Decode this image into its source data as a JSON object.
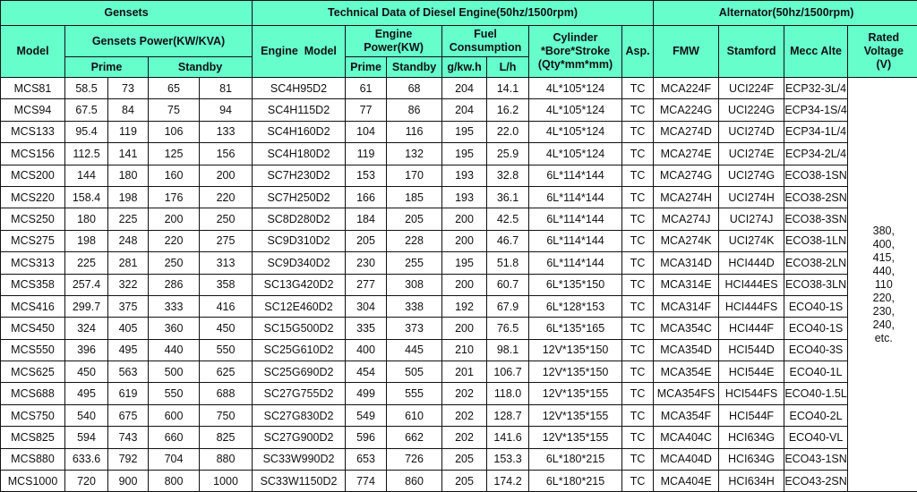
{
  "header": {
    "gensets": "Gensets",
    "engine_group": "Technical Data of Diesel Engine(50hz/1500rpm)",
    "alternator_group": "Alternator(50hz/1500rpm)",
    "model": "Model",
    "gensets_power": "Gensets Power(KW/KVA)",
    "engine_model": "Engine  Model",
    "engine_power": "Engine Power(KW)",
    "fuel_consumption": "Fuel Consumption",
    "cylinder": "Cylinder *Bore*Stroke (Qty*mm*mm)",
    "asp": "Asp.",
    "fmw": "FMW",
    "stamford": "Stamford",
    "mecc_alte": "Mecc Alte",
    "rated_voltage": "Rated Voltage (V)",
    "prime": "Prime",
    "standby": "Standby",
    "engine_prime": "Prime",
    "engine_standby": "Standby",
    "gkwh": "g/kw.h",
    "lh": "L/h"
  },
  "rated_voltage": "380,\n400,\n415,\n440,\n110\n220,\n230,\n240,\netc.",
  "header_color": "#66ffcc",
  "rows": [
    [
      "MCS81",
      "58.5",
      "73",
      "65",
      "81",
      "SC4H95D2",
      "61",
      "68",
      "204",
      "14.1",
      "4L*105*124",
      "TC",
      "MCA224F",
      "UCI224F",
      "ECP32-3L/4"
    ],
    [
      "MCS94",
      "67.5",
      "84",
      "75",
      "94",
      "SC4H115D2",
      "77",
      "86",
      "204",
      "16.2",
      "4L*105*124",
      "TC",
      "MCA224G",
      "UCI224G",
      "ECP34-1S/4"
    ],
    [
      "MCS133",
      "95.4",
      "119",
      "106",
      "133",
      "SC4H160D2",
      "104",
      "116",
      "195",
      "22.0",
      "4L*105*124",
      "TC",
      "MCA274D",
      "UCI274D",
      "ECP34-1L/4"
    ],
    [
      "MCS156",
      "112.5",
      "141",
      "125",
      "156",
      "SC4H180D2",
      "119",
      "132",
      "195",
      "25.9",
      "4L*105*124",
      "TC",
      "MCA274E",
      "UCI274E",
      "ECP34-2L/4"
    ],
    [
      "MCS200",
      "144",
      "180",
      "160",
      "200",
      "SC7H230D2",
      "153",
      "170",
      "193",
      "32.8",
      "6L*114*144",
      "TC",
      "MCA274G",
      "UCI274G",
      "ECO38-1SN"
    ],
    [
      "MCS220",
      "158.4",
      "198",
      "176",
      "220",
      "SC7H250D2",
      "166",
      "185",
      "193",
      "36.1",
      "6L*114*144",
      "TC",
      "MCA274H",
      "UCI274H",
      "ECO38-2SN"
    ],
    [
      "MCS250",
      "180",
      "225",
      "200",
      "250",
      "SC8D280D2",
      "184",
      "205",
      "200",
      "42.5",
      "6L*114*144",
      "TC",
      "MCA274J",
      "UCI274J",
      "ECO38-3SN"
    ],
    [
      "MCS275",
      "198",
      "248",
      "220",
      "275",
      "SC9D310D2",
      "205",
      "228",
      "200",
      "46.7",
      "6L*114*144",
      "TC",
      "MCA274K",
      "UCI274K",
      "ECO38-1LN"
    ],
    [
      "MCS313",
      "225",
      "281",
      "250",
      "313",
      "SC9D340D2",
      "230",
      "255",
      "195",
      "51.8",
      "6L*114*144",
      "TC",
      "MCA314D",
      "HCI444D",
      "ECO38-2LN"
    ],
    [
      "MCS358",
      "257.4",
      "322",
      "286",
      "358",
      "SC13G420D2",
      "277",
      "308",
      "200",
      "60.7",
      "6L*135*150",
      "TC",
      "MCA314E",
      "HCI444ES",
      "ECO38-3LN"
    ],
    [
      "MCS416",
      "299.7",
      "375",
      "333",
      "416",
      "SC12E460D2",
      "304",
      "338",
      "192",
      "67.9",
      "6L*128*153",
      "TC",
      "MCA314F",
      "HCI444FS",
      "ECO40-1S"
    ],
    [
      "MCS450",
      "324",
      "405",
      "360",
      "450",
      "SC15G500D2",
      "335",
      "373",
      "200",
      "76.5",
      "6L*135*165",
      "TC",
      "MCA354C",
      "HCI444F",
      "ECO40-1S"
    ],
    [
      "MCS550",
      "396",
      "495",
      "440",
      "550",
      "SC25G610D2",
      "400",
      "445",
      "210",
      "98.1",
      "12V*135*150",
      "TC",
      "MCA354D",
      "HCI544D",
      "ECO40-3S"
    ],
    [
      "MCS625",
      "450",
      "563",
      "500",
      "625",
      "SC25G690D2",
      "454",
      "505",
      "201",
      "106.7",
      "12V*135*150",
      "TC",
      "MCA354E",
      "HCI544E",
      "ECO40-1L"
    ],
    [
      "MCS688",
      "495",
      "619",
      "550",
      "688",
      "SC27G755D2",
      "499",
      "555",
      "202",
      "118.0",
      "12V*135*155",
      "TC",
      "MCA354FS",
      "HCI544FS",
      "ECO40-1.5L"
    ],
    [
      "MCS750",
      "540",
      "675",
      "600",
      "750",
      "SC27G830D2",
      "549",
      "610",
      "202",
      "128.7",
      "12V*135*155",
      "TC",
      "MCA354F",
      "HCI544F",
      "ECO40-2L"
    ],
    [
      "MCS825",
      "594",
      "743",
      "660",
      "825",
      "SC27G900D2",
      "596",
      "662",
      "202",
      "141.6",
      "12V*135*155",
      "TC",
      "MCA404C",
      "HCI634G",
      "ECO40-VL"
    ],
    [
      "MCS880",
      "633.6",
      "792",
      "704",
      "880",
      "SC33W990D2",
      "653",
      "726",
      "205",
      "153.3",
      "6L*180*215",
      "TC",
      "MCA404D",
      "HCI634G",
      "ECO43-1SN"
    ],
    [
      "MCS1000",
      "720",
      "900",
      "800",
      "1000",
      "SC33W1150D2",
      "774",
      "860",
      "205",
      "174.2",
      "6L*180*215",
      "TC",
      "MCA404E",
      "HCI634H",
      "ECO43-2SN"
    ]
  ]
}
